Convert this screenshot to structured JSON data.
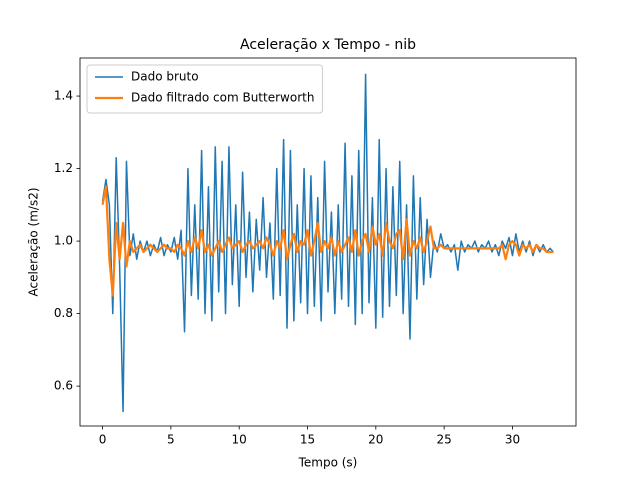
{
  "chart_data": {
    "type": "line",
    "title": "Aceleração x Tempo - nib",
    "x_label": "Tempo (s)",
    "y_label": "Aceleração (m/s2)",
    "xlim": [
      -1.65,
      34.65
    ],
    "ylim": [
      0.49,
      1.505
    ],
    "xticks": [
      0,
      5,
      10,
      15,
      20,
      25,
      30
    ],
    "yticks": [
      0.6,
      0.8,
      {
        "value": 1.0,
        "label": "1.0"
      },
      1.2,
      1.4
    ],
    "grid": false,
    "legend": "upper left",
    "x": [
      0,
      0.25,
      0.5,
      0.75,
      1,
      1.25,
      1.5,
      1.75,
      2,
      2.25,
      2.5,
      2.75,
      3,
      3.25,
      3.5,
      3.75,
      4,
      4.25,
      4.5,
      4.75,
      5,
      5.25,
      5.5,
      5.75,
      6,
      6.25,
      6.5,
      6.75,
      7,
      7.25,
      7.5,
      7.75,
      8,
      8.25,
      8.5,
      8.75,
      9,
      9.25,
      9.5,
      9.75,
      10,
      10.25,
      10.5,
      10.75,
      11,
      11.25,
      11.5,
      11.75,
      12,
      12.25,
      12.5,
      12.75,
      13,
      13.25,
      13.5,
      13.75,
      14,
      14.25,
      14.5,
      14.75,
      15,
      15.25,
      15.5,
      15.75,
      16,
      16.25,
      16.5,
      16.75,
      17,
      17.25,
      17.5,
      17.75,
      18,
      18.25,
      18.5,
      18.75,
      19,
      19.25,
      19.5,
      19.75,
      20,
      20.25,
      20.5,
      20.75,
      21,
      21.25,
      21.5,
      21.75,
      22,
      22.25,
      22.5,
      22.75,
      23,
      23.25,
      23.5,
      23.75,
      24,
      24.25,
      24.5,
      24.75,
      25,
      25.25,
      25.5,
      25.75,
      26,
      26.25,
      26.5,
      26.75,
      27,
      27.25,
      27.5,
      27.75,
      28,
      28.25,
      28.5,
      28.75,
      29,
      29.25,
      29.5,
      29.75,
      30,
      30.25,
      30.5,
      30.75,
      31,
      31.25,
      31.5,
      31.75,
      32,
      32.25,
      32.5,
      32.75,
      33
    ],
    "series": [
      {
        "name": "Dado bruto",
        "color": "#1f77b4",
        "width": 1.5,
        "values": [
          1.11,
          1.17,
          1.1,
          0.8,
          1.23,
          0.93,
          0.53,
          1.22,
          0.96,
          1.02,
          0.95,
          1.0,
          0.97,
          1.0,
          0.96,
          0.99,
          0.97,
          1.01,
          0.96,
          0.99,
          0.97,
          1.01,
          0.95,
          1.03,
          0.75,
          1.2,
          0.85,
          1.1,
          0.84,
          1.25,
          0.8,
          1.15,
          0.78,
          1.26,
          0.86,
          1.22,
          0.8,
          1.26,
          0.88,
          1.1,
          0.82,
          1.19,
          0.9,
          1.08,
          0.86,
          1.06,
          0.92,
          1.12,
          0.9,
          1.05,
          0.84,
          1.2,
          0.85,
          1.28,
          0.76,
          1.25,
          0.78,
          1.1,
          0.83,
          1.2,
          0.8,
          1.18,
          0.82,
          1.12,
          0.78,
          1.22,
          0.86,
          1.08,
          0.8,
          1.1,
          0.84,
          1.27,
          0.82,
          1.18,
          0.77,
          1.25,
          0.8,
          1.46,
          0.83,
          1.12,
          0.76,
          1.28,
          0.79,
          1.2,
          0.82,
          1.15,
          0.85,
          1.22,
          0.8,
          1.1,
          0.73,
          1.18,
          0.84,
          1.12,
          0.88,
          1.06,
          0.9,
          1.0,
          0.97,
          1.02,
          0.98,
          0.99,
          0.97,
          0.99,
          0.92,
          1.0,
          0.97,
          0.99,
          0.98,
          1.0,
          0.97,
          0.99,
          0.98,
          1.0,
          0.97,
          0.99,
          0.96,
          1.0,
          0.98,
          1.01,
          0.96,
          1.02,
          0.97,
          1.0,
          0.97,
          1.0,
          0.96,
          0.99,
          0.97,
          0.99,
          0.97,
          0.98,
          0.97
        ]
      },
      {
        "name": "Dado filtrado com Butterworth",
        "color": "#ff7f0e",
        "width": 2.2,
        "values": [
          1.1,
          1.15,
          0.95,
          0.85,
          1.05,
          0.95,
          1.05,
          0.93,
          1.0,
          0.97,
          0.98,
          0.99,
          0.97,
          0.98,
          0.99,
          0.98,
          0.97,
          0.98,
          0.99,
          0.98,
          0.98,
          0.97,
          0.99,
          0.98,
          0.96,
          1.0,
          0.97,
          1.01,
          0.98,
          1.03,
          0.97,
          0.99,
          0.96,
          0.98,
          1.0,
          0.97,
          0.99,
          1.01,
          0.98,
          0.99,
          1.0,
          0.97,
          0.99,
          1.0,
          0.98,
          0.99,
          1.0,
          0.98,
          1.01,
          0.99,
          0.96,
          1.0,
          0.98,
          1.03,
          0.95,
          0.99,
          1.02,
          0.97,
          1.0,
          0.99,
          1.03,
          0.96,
          1.0,
          1.05,
          0.97,
          1.0,
          0.98,
          1.01,
          0.96,
          1.0,
          0.97,
          0.99,
          1.01,
          0.97,
          1.03,
          0.96,
          1.0,
          1.02,
          0.97,
          1.04,
          0.99,
          1.02,
          0.96,
          1.05,
          1.0,
          0.98,
          1.02,
          1.03,
          0.95,
          1.06,
          0.96,
          1.0,
          0.98,
          1.01,
          0.97,
          1.0,
          1.04,
          0.98,
          0.98,
          0.99,
          0.98,
          0.98,
          0.98,
          0.98,
          0.98,
          0.98,
          0.98,
          0.98,
          0.98,
          0.98,
          0.98,
          0.98,
          0.98,
          0.98,
          0.98,
          0.98,
          0.98,
          0.99,
          0.95,
          0.99,
          1.0,
          0.99,
          0.96,
          0.99,
          0.98,
          0.99,
          0.97,
          0.99,
          0.98,
          0.98,
          0.97,
          0.97,
          0.97
        ]
      }
    ]
  }
}
